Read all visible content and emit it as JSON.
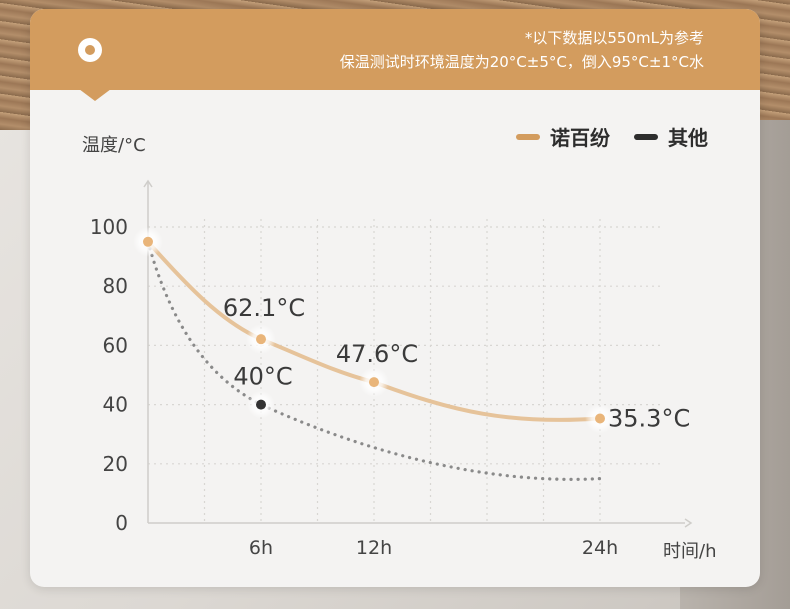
{
  "header": {
    "note_line1": "*以下数据以550mL为参考",
    "note_line2": "保温测试时环境温度为20°C±5°C，倒入95°C±1°C水",
    "icon": "ring-icon",
    "color": "#d39c5e"
  },
  "chart_data": {
    "type": "line",
    "title": "",
    "ylabel": "温度/°C",
    "xlabel": "时间/h",
    "ylim": [
      0,
      100
    ],
    "yticks": [
      "0",
      "20",
      "40",
      "60",
      "80",
      "100"
    ],
    "xticks": [
      "6h",
      "12h",
      "24h"
    ],
    "grid": true,
    "legend_position": "top-right",
    "series": [
      {
        "name": "诺百纷",
        "color": "#e6c39a",
        "style": "solid",
        "x": [
          0,
          6,
          12,
          24
        ],
        "values": [
          95,
          62.1,
          47.6,
          35.3
        ],
        "labels": [
          "",
          "62.1°C",
          "47.6°C",
          "35.3°C"
        ]
      },
      {
        "name": "其他",
        "color": "#8a8a8a",
        "style": "dotted",
        "x": [
          0,
          6,
          24
        ],
        "values": [
          95,
          40,
          15
        ],
        "labels": [
          "",
          "40°C",
          ""
        ]
      }
    ]
  }
}
